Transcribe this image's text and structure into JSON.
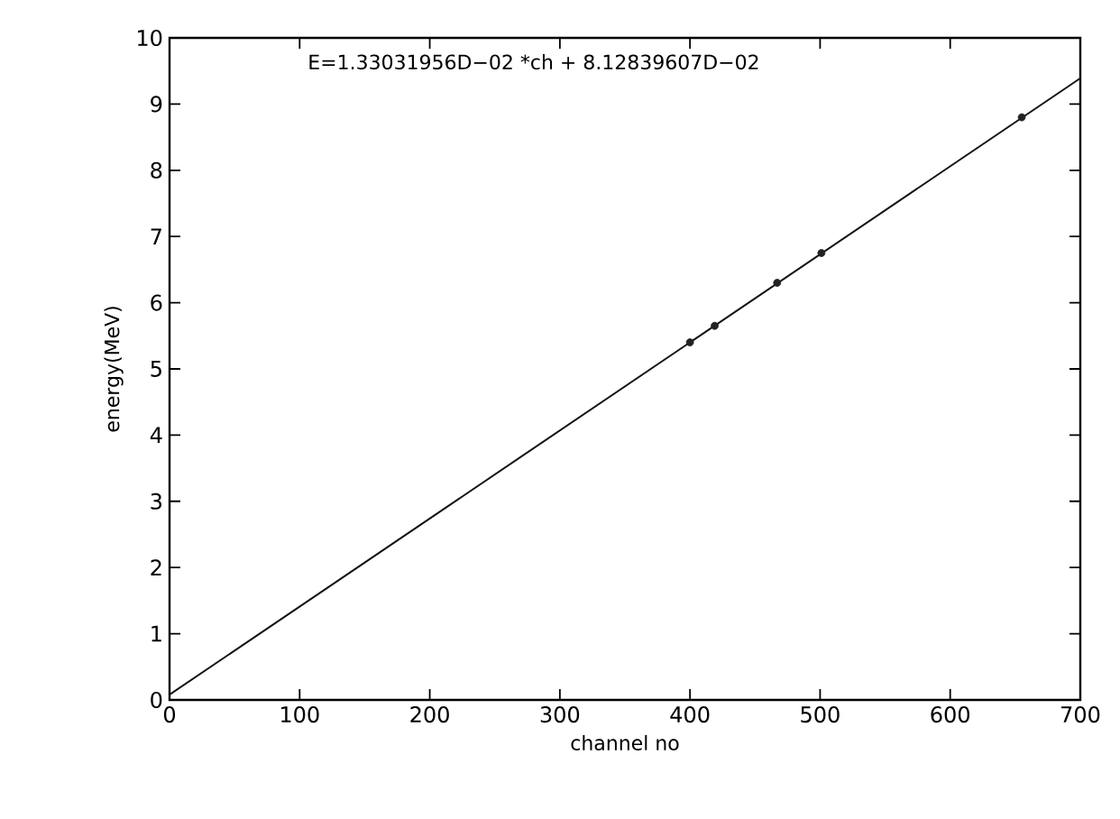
{
  "chart_data": {
    "type": "scatter",
    "xlabel": "channel no",
    "ylabel": "energy(MeV)",
    "annotations": [
      "E=1.33031956D−02 *ch  +  8.12839607D−02"
    ],
    "series": [
      {
        "color": "#222222",
        "x": [
          400,
          419,
          467,
          501,
          655
        ],
        "values": [
          5.4,
          5.65,
          6.3,
          6.75,
          8.8
        ],
        "marker": "circle"
      },
      {
        "type": "line",
        "color": "#111111",
        "x": [
          0,
          700
        ],
        "values": [
          0.08,
          9.39
        ],
        "marker": "none"
      }
    ],
    "xlim": [
      0,
      700
    ],
    "ylim": [
      0,
      10
    ],
    "xticks": [
      0,
      100,
      200,
      300,
      400,
      500,
      600,
      700
    ],
    "yticks": [
      0,
      1,
      2,
      3,
      4,
      5,
      6,
      7,
      8,
      9,
      10
    ],
    "grid": false
  }
}
